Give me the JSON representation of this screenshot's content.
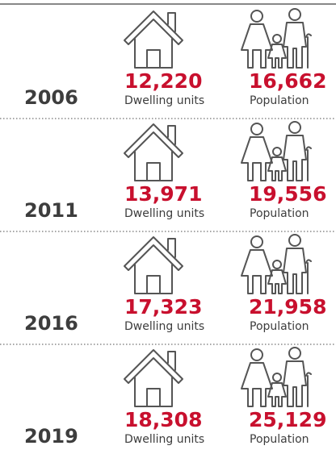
{
  "rows": [
    {
      "year": "2006",
      "dwelling": {
        "value": "12,220",
        "label": "Dwelling units"
      },
      "population": {
        "value": "16,662",
        "label": "Population"
      }
    },
    {
      "year": "2011",
      "dwelling": {
        "value": "13,971",
        "label": "Dwelling units"
      },
      "population": {
        "value": "19,556",
        "label": "Population"
      }
    },
    {
      "year": "2016",
      "dwelling": {
        "value": "17,323",
        "label": "Dwelling units"
      },
      "population": {
        "value": "21,958",
        "label": "Population"
      }
    },
    {
      "year": "2019",
      "dwelling": {
        "value": "18,308",
        "label": "Dwelling units"
      },
      "population": {
        "value": "25,129",
        "label": "Population"
      }
    }
  ]
}
